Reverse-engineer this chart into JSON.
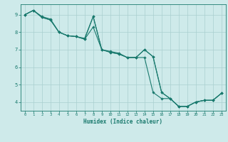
{
  "title": "",
  "xlabel": "Humidex (Indice chaleur)",
  "bg_color": "#ceeaea",
  "grid_color": "#aacfcf",
  "line_color": "#1a7a6e",
  "marker_color": "#1a7a6e",
  "xlim": [
    -0.5,
    23.5
  ],
  "ylim": [
    3.5,
    9.6
  ],
  "yticks": [
    4,
    5,
    6,
    7,
    8,
    9
  ],
  "xticks": [
    0,
    1,
    2,
    3,
    4,
    5,
    6,
    7,
    8,
    9,
    10,
    11,
    12,
    13,
    14,
    15,
    16,
    17,
    18,
    19,
    20,
    21,
    22,
    23
  ],
  "series1": [
    [
      0,
      9.0
    ],
    [
      1,
      9.25
    ],
    [
      2,
      8.9
    ],
    [
      3,
      8.75
    ],
    [
      4,
      8.0
    ],
    [
      5,
      7.8
    ],
    [
      6,
      7.75
    ],
    [
      7,
      7.65
    ],
    [
      8,
      8.9
    ],
    [
      9,
      7.0
    ],
    [
      10,
      6.9
    ],
    [
      11,
      6.8
    ],
    [
      12,
      6.55
    ],
    [
      13,
      6.55
    ],
    [
      14,
      7.0
    ],
    [
      15,
      6.6
    ],
    [
      16,
      4.55
    ],
    [
      17,
      4.2
    ],
    [
      18,
      3.75
    ],
    [
      19,
      3.75
    ],
    [
      20,
      4.0
    ],
    [
      21,
      4.1
    ],
    [
      22,
      4.1
    ],
    [
      23,
      4.5
    ]
  ],
  "series2": [
    [
      0,
      9.0
    ],
    [
      1,
      9.25
    ],
    [
      2,
      8.85
    ],
    [
      3,
      8.7
    ],
    [
      4,
      8.0
    ],
    [
      5,
      7.8
    ],
    [
      6,
      7.75
    ],
    [
      7,
      7.6
    ],
    [
      8,
      8.3
    ],
    [
      9,
      7.0
    ],
    [
      10,
      6.85
    ],
    [
      11,
      6.75
    ],
    [
      12,
      6.55
    ],
    [
      13,
      6.55
    ],
    [
      14,
      6.55
    ],
    [
      15,
      4.55
    ],
    [
      16,
      4.2
    ],
    [
      17,
      4.2
    ],
    [
      18,
      3.75
    ],
    [
      19,
      3.75
    ],
    [
      20,
      4.0
    ],
    [
      21,
      4.1
    ],
    [
      22,
      4.1
    ],
    [
      23,
      4.5
    ]
  ],
  "series3": [
    [
      0,
      9.0
    ],
    [
      1,
      9.25
    ],
    [
      2,
      8.85
    ],
    [
      3,
      8.7
    ],
    [
      4,
      8.0
    ],
    [
      5,
      7.8
    ],
    [
      6,
      7.75
    ],
    [
      7,
      7.6
    ],
    [
      8,
      8.9
    ],
    [
      9,
      7.0
    ],
    [
      10,
      6.85
    ],
    [
      11,
      6.75
    ],
    [
      12,
      6.55
    ],
    [
      13,
      6.55
    ],
    [
      14,
      7.0
    ],
    [
      15,
      6.6
    ],
    [
      16,
      4.55
    ],
    [
      17,
      4.2
    ],
    [
      18,
      3.75
    ],
    [
      19,
      3.75
    ],
    [
      20,
      4.0
    ],
    [
      21,
      4.1
    ],
    [
      22,
      4.1
    ],
    [
      23,
      4.5
    ]
  ]
}
